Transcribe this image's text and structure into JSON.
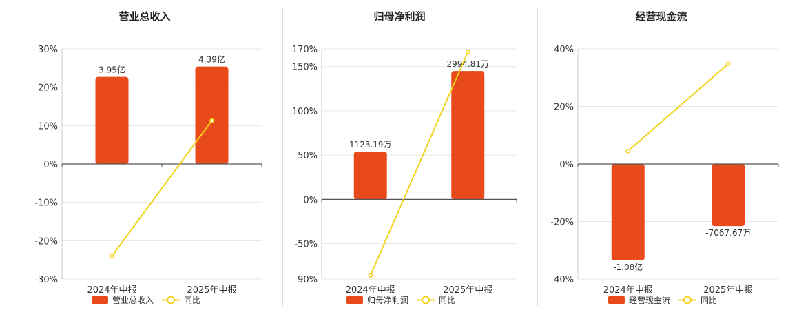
{
  "colors": {
    "bar": "#E84A1B",
    "line": "#F0D21A",
    "grid": "#E6E6E6",
    "axis": "#555555",
    "divider": "#BBBBBB"
  },
  "chart_data": [
    {
      "type": "bar",
      "title": "营业总收入",
      "categories": [
        "2024年中报",
        "2025年中报"
      ],
      "ylim": [
        -30,
        30
      ],
      "yticks": [
        -30,
        -20,
        -10,
        0,
        10,
        20,
        30
      ],
      "ytick_labels": [
        "-30%",
        "-20%",
        "-10%",
        "0%",
        "10%",
        "20%",
        "30%"
      ],
      "series": [
        {
          "name": "营业总收入",
          "kind": "bar",
          "values": [
            22.7,
            25.4
          ],
          "labels": [
            "3.95亿",
            "4.39亿"
          ]
        },
        {
          "name": "同比",
          "kind": "line",
          "values": [
            -24,
            11.3
          ]
        }
      ],
      "grid": true,
      "legend": "bottom"
    },
    {
      "type": "bar",
      "title": "归母净利润",
      "categories": [
        "2024年中报",
        "2025年中报"
      ],
      "ylim": [
        -90,
        170
      ],
      "yticks": [
        -90,
        -50,
        0,
        50,
        100,
        150,
        170
      ],
      "ytick_labels": [
        "-90%",
        "-50%",
        "0%",
        "50%",
        "100%",
        "150%",
        "170%"
      ],
      "series": [
        {
          "name": "归母净利润",
          "kind": "bar",
          "values": [
            54,
            145
          ],
          "labels": [
            "1123.19万",
            "2994.81万"
          ]
        },
        {
          "name": "同比",
          "kind": "line",
          "values": [
            -86,
            166.5
          ]
        }
      ],
      "grid": true,
      "legend": "bottom"
    },
    {
      "type": "bar",
      "title": "经营现金流",
      "categories": [
        "2024年中报",
        "2025年中报"
      ],
      "ylim": [
        -40,
        40
      ],
      "yticks": [
        -40,
        -20,
        0,
        20,
        40
      ],
      "ytick_labels": [
        "-40%",
        "-20%",
        "0%",
        "20%",
        "40%"
      ],
      "series": [
        {
          "name": "经营现金流",
          "kind": "bar",
          "values": [
            -33.5,
            -21.6
          ],
          "labels": [
            "-1.08亿",
            "-7067.67万"
          ]
        },
        {
          "name": "同比",
          "kind": "line",
          "values": [
            4.5,
            34.8
          ]
        }
      ],
      "grid": true,
      "legend": "bottom"
    }
  ]
}
